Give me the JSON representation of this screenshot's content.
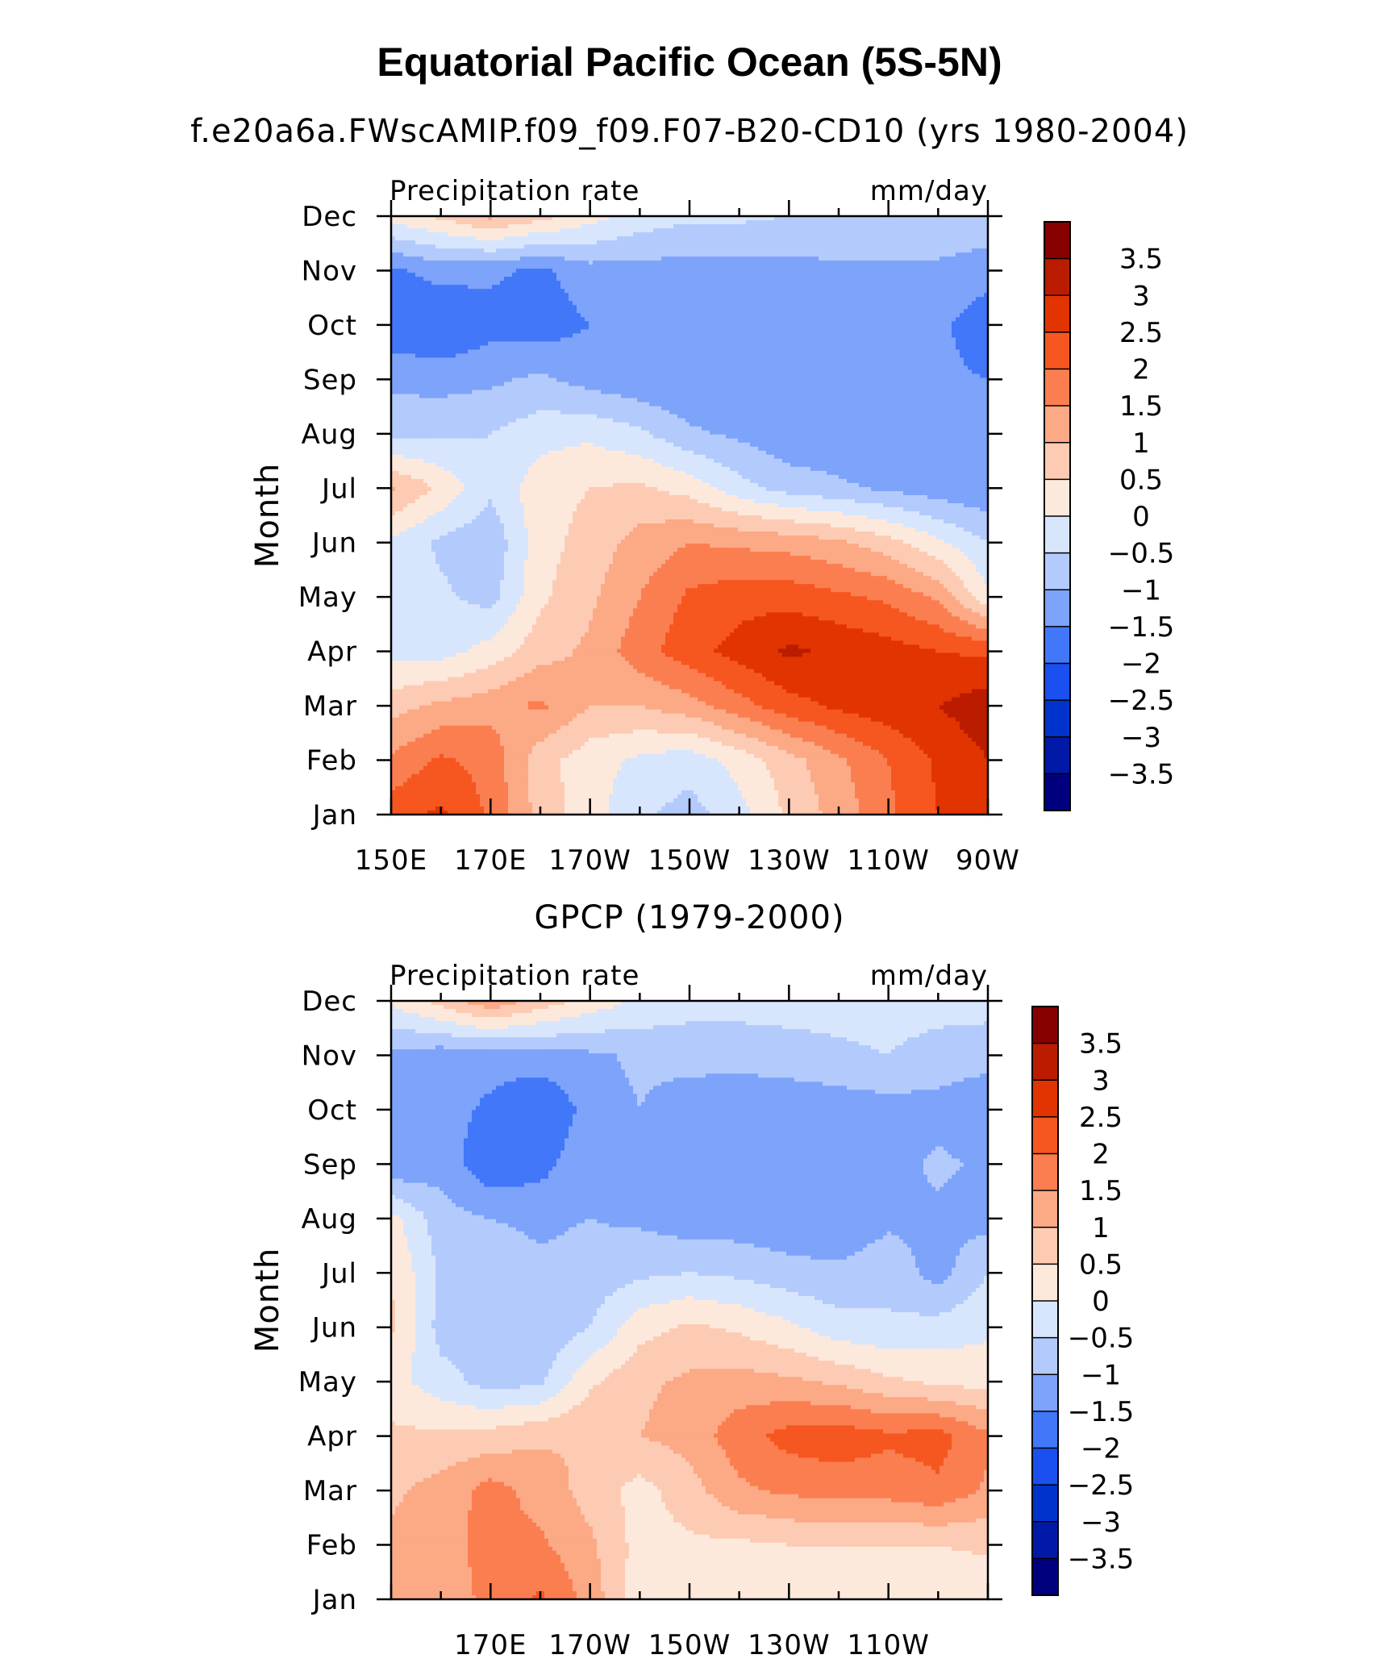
{
  "figure": {
    "title": "Equatorial Pacific Ocean (5S-5N)"
  },
  "chart_data": [
    {
      "type": "heatmap",
      "title": "f.e20a6a.FWscAMIP.f09_f09.F07-B20-CD10 (yrs 1980-2004)",
      "left_label": "Precipitation rate",
      "right_label": "mm/day",
      "ylabel": "Month",
      "xlabel": "",
      "x": [
        150,
        160,
        170,
        180,
        190,
        200,
        210,
        220,
        230,
        240,
        250,
        260,
        270
      ],
      "x_ticks": [
        150,
        170,
        190,
        210,
        230,
        250,
        270
      ],
      "x_tick_labels": [
        "150E",
        "170E",
        "170W",
        "150W",
        "130W",
        "110W",
        "90W"
      ],
      "y_tick_labels": [
        "Jan",
        "Feb",
        "Mar",
        "Apr",
        "May",
        "Jun",
        "Jul",
        "Aug",
        "Sep",
        "Oct",
        "Nov",
        "Dec"
      ],
      "xlim": [
        150,
        270
      ],
      "ylim": [
        "Jan",
        "Dec"
      ],
      "values": [
        [
          2.3,
          2.6,
          1.9,
          0.8,
          0.2,
          -0.4,
          -0.7,
          -0.2,
          0.6,
          1.2,
          1.9,
          2.5,
          2.8
        ],
        [
          1.6,
          2.1,
          1.8,
          0.7,
          0.2,
          -0.1,
          -0.3,
          0.2,
          0.8,
          1.4,
          2.0,
          2.6,
          3.0
        ],
        [
          0.8,
          1.1,
          1.3,
          1.6,
          1.0,
          1.0,
          1.3,
          1.8,
          2.3,
          2.6,
          2.8,
          3.0,
          3.3
        ],
        [
          -0.2,
          -0.2,
          0.2,
          0.8,
          1.1,
          1.8,
          2.3,
          2.7,
          3.1,
          2.9,
          2.7,
          2.5,
          2.4
        ],
        [
          -0.2,
          -0.4,
          -0.7,
          0.4,
          0.9,
          1.5,
          2.1,
          2.3,
          2.3,
          2.1,
          1.9,
          1.4,
          0.1
        ],
        [
          -0.1,
          -0.6,
          -0.9,
          0.3,
          0.7,
          1.2,
          1.5,
          1.4,
          1.3,
          1.1,
          0.7,
          0.1,
          -0.5
        ],
        [
          1.1,
          0.4,
          -0.4,
          0.3,
          0.5,
          0.6,
          0.3,
          -0.3,
          -0.7,
          -0.9,
          -1.1,
          -1.3,
          -1.4
        ],
        [
          -0.7,
          -0.6,
          -0.5,
          -0.2,
          -0.1,
          -0.4,
          -0.9,
          -1.1,
          -1.4,
          -1.4,
          -1.4,
          -1.4,
          -1.5
        ],
        [
          -1.1,
          -1.2,
          -1.1,
          -0.9,
          -1.2,
          -1.4,
          -1.5,
          -1.5,
          -1.4,
          -1.4,
          -1.4,
          -1.4,
          -1.5
        ],
        [
          -1.9,
          -2.0,
          -1.7,
          -1.8,
          -1.5,
          -1.4,
          -1.4,
          -1.4,
          -1.4,
          -1.4,
          -1.4,
          -1.4,
          -1.8
        ],
        [
          -1.6,
          -1.3,
          -1.4,
          -1.6,
          -1.2,
          -1.2,
          -1.2,
          -1.2,
          -1.2,
          -1.1,
          -1.1,
          -1.1,
          -1.3
        ],
        [
          0.2,
          0.6,
          1.1,
          0.7,
          0.2,
          -0.2,
          -0.4,
          -0.4,
          -0.5,
          -0.5,
          -0.5,
          -0.6,
          -0.6
        ]
      ],
      "colorbar": {
        "levels": [
          -3.5,
          -3,
          -2.5,
          -2,
          -1.5,
          -1,
          -0.5,
          0,
          0.5,
          1,
          1.5,
          2,
          2.5,
          3,
          3.5
        ],
        "tick_labels": [
          "−3.5",
          "−3",
          "−2.5",
          "−2",
          "−1.5",
          "−1",
          "−0.5",
          "0",
          "0.5",
          "1",
          "1.5",
          "2",
          "2.5",
          "3",
          "3.5"
        ],
        "colors": [
          "#00007f",
          "#0019a6",
          "#0033cc",
          "#1a4ff0",
          "#4177f8",
          "#7da3fa",
          "#b3cbfc",
          "#d7e6fd",
          "#fde9dc",
          "#fdcbb3",
          "#fca985",
          "#fb7e50",
          "#f6561f",
          "#e13400",
          "#bb1c00",
          "#870000"
        ]
      }
    },
    {
      "type": "heatmap",
      "title": "GPCP (1979-2000)",
      "left_label": "Precipitation rate",
      "right_label": "mm/day",
      "ylabel": "Month",
      "xlabel": "",
      "x": [
        150,
        160,
        170,
        180,
        190,
        200,
        210,
        220,
        230,
        240,
        250,
        260,
        270
      ],
      "x_ticks": [
        170,
        190,
        210,
        230,
        250
      ],
      "x_tick_labels": [
        "170E",
        "170W",
        "150W",
        "130W",
        "110W"
      ],
      "y_tick_labels": [
        "Jan",
        "Feb",
        "Mar",
        "Apr",
        "May",
        "Jun",
        "Jul",
        "Aug",
        "Sep",
        "Oct",
        "Nov",
        "Dec"
      ],
      "xlim": [
        150,
        270
      ],
      "ylim": [
        "Jan",
        "Dec"
      ],
      "values": [
        [
          1.1,
          1.3,
          1.6,
          2.1,
          1.3,
          0.2,
          0.1,
          0.1,
          0.1,
          0.1,
          0.1,
          0.1,
          0.1
        ],
        [
          1.1,
          1.4,
          1.6,
          1.6,
          1.1,
          0.3,
          0.4,
          0.4,
          0.5,
          0.5,
          0.5,
          0.5,
          0.6
        ],
        [
          0.9,
          1.2,
          1.7,
          1.3,
          0.8,
          0.3,
          0.8,
          1.4,
          1.6,
          1.7,
          1.7,
          1.9,
          1.4
        ],
        [
          0.6,
          0.6,
          0.7,
          0.9,
          1.0,
          1.0,
          1.2,
          1.8,
          2.2,
          2.3,
          2.1,
          2.2,
          1.6
        ],
        [
          0.2,
          -0.3,
          -0.7,
          -0.6,
          0.4,
          0.9,
          1.1,
          1.2,
          1.1,
          0.9,
          0.6,
          0.4,
          0.3
        ],
        [
          0.6,
          -0.7,
          -0.7,
          -0.9,
          -0.5,
          0.3,
          0.6,
          0.4,
          0.1,
          -0.3,
          -0.4,
          -0.3,
          -0.1
        ],
        [
          0.5,
          -0.6,
          -0.7,
          -0.9,
          -0.8,
          -0.6,
          -0.5,
          -0.6,
          -0.8,
          -0.9,
          -0.7,
          -1.2,
          -0.5
        ],
        [
          0.2,
          -0.8,
          -1.0,
          -1.1,
          -1.0,
          -1.1,
          -1.3,
          -1.3,
          -1.4,
          -1.4,
          -1.1,
          -1.1,
          -1.2
        ],
        [
          -1.5,
          -1.2,
          -1.9,
          -1.7,
          -1.1,
          -1.2,
          -1.4,
          -1.3,
          -1.2,
          -1.3,
          -1.2,
          -0.9,
          -1.1
        ],
        [
          -1.3,
          -1.3,
          -1.6,
          -2.0,
          -1.3,
          -1.0,
          -1.3,
          -1.4,
          -1.4,
          -1.3,
          -1.2,
          -1.2,
          -1.4
        ],
        [
          -1.1,
          -1.3,
          -1.3,
          -1.2,
          -1.1,
          -0.9,
          -0.8,
          -0.8,
          -0.7,
          -0.6,
          -0.5,
          -0.7,
          -0.8
        ],
        [
          0.1,
          0.7,
          1.4,
          0.8,
          0.3,
          -0.1,
          -0.3,
          -0.3,
          -0.3,
          -0.3,
          -0.3,
          -0.3,
          -0.3
        ]
      ],
      "colorbar": {
        "levels": [
          -3.5,
          -3,
          -2.5,
          -2,
          -1.5,
          -1,
          -0.5,
          0,
          0.5,
          1,
          1.5,
          2,
          2.5,
          3,
          3.5
        ],
        "tick_labels": [
          "−3.5",
          "−3",
          "−2.5",
          "−2",
          "−1.5",
          "−1",
          "−0.5",
          "0",
          "0.5",
          "1",
          "1.5",
          "2",
          "2.5",
          "3",
          "3.5"
        ],
        "colors": [
          "#00007f",
          "#0019a6",
          "#0033cc",
          "#1a4ff0",
          "#4177f8",
          "#7da3fa",
          "#b3cbfc",
          "#d7e6fd",
          "#fde9dc",
          "#fdcbb3",
          "#fca985",
          "#fb7e50",
          "#f6561f",
          "#e13400",
          "#bb1c00",
          "#870000"
        ]
      }
    }
  ]
}
